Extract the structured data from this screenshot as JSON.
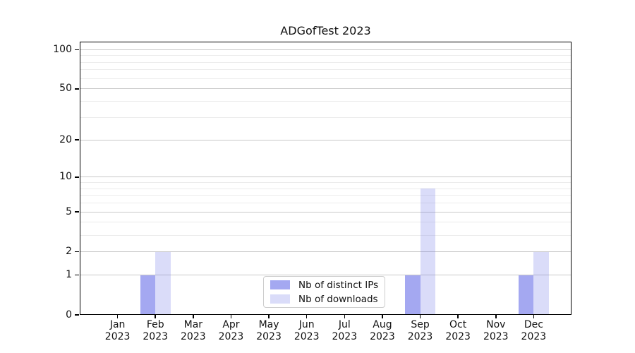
{
  "figure": {
    "background": "#ffffff"
  },
  "chart_data": {
    "type": "bar",
    "title": "ADGofTest 2023",
    "categories": [
      "Jan 2023",
      "Feb 2023",
      "Mar 2023",
      "Apr 2023",
      "May 2023",
      "Jun 2023",
      "Jul 2023",
      "Aug 2023",
      "Sep 2023",
      "Oct 2023",
      "Nov 2023",
      "Dec 2023"
    ],
    "series": [
      {
        "name": "Nb of distinct IPs",
        "color": "rgba(108,114,233,0.62)",
        "values": [
          0,
          1,
          0,
          0,
          0,
          0,
          0,
          0,
          1,
          0,
          0,
          1
        ]
      },
      {
        "name": "Nb of downloads",
        "color": "rgba(108,114,233,0.25)",
        "values": [
          0,
          2,
          0,
          0,
          0,
          0,
          0,
          0,
          8,
          0,
          0,
          2
        ]
      }
    ],
    "yscale": "log1p",
    "ylim": [
      0,
      115
    ],
    "y_major_ticks": [
      0,
      1,
      2,
      5,
      10,
      20,
      50,
      100
    ],
    "y_minor_gridlines": [
      3,
      4,
      6,
      7,
      8,
      9,
      30,
      40,
      60,
      70,
      80,
      90
    ],
    "grid": "horizontal",
    "legend_position": "lower center",
    "grid_major_color": "#c9c9c9",
    "grid_minor_color": "#ececec"
  }
}
